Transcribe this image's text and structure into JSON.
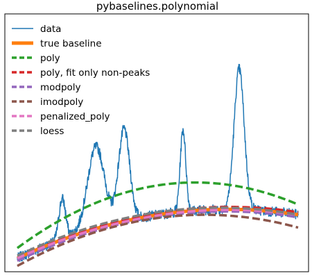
{
  "chart_data": {
    "type": "line",
    "title": "pybaselines.polynomial",
    "xlabel": "",
    "ylabel": "",
    "x_range": [
      0,
      1
    ],
    "y_range": [
      0,
      1
    ],
    "grid": false,
    "axes_ticks": false,
    "legend_position": "top-left",
    "series": [
      {
        "name": "data",
        "color": "#1f77b4",
        "style": "solid-thin",
        "peaks": [
          {
            "center": 0.16,
            "height": 0.16,
            "width": 0.012
          },
          {
            "center": 0.28,
            "height": 0.32,
            "width": 0.03
          },
          {
            "center": 0.38,
            "height": 0.36,
            "width": 0.02
          },
          {
            "center": 0.59,
            "height": 0.32,
            "width": 0.01
          },
          {
            "center": 0.79,
            "height": 0.55,
            "width": 0.018
          }
        ],
        "noise": 0.02
      },
      {
        "name": "true baseline",
        "color": "#ff7f0e",
        "style": "solid-thick",
        "curve": [
          0.05,
          0.51,
          -0.34
        ]
      },
      {
        "name": "poly",
        "color": "#2ca02c",
        "style": "dashed",
        "curve": [
          0.09,
          0.81,
          -0.64
        ]
      },
      {
        "name": "poly, fit only non-peaks",
        "color": "#d62728",
        "style": "dashed",
        "curve": [
          0.05,
          0.53,
          -0.35
        ]
      },
      {
        "name": "modpoly",
        "color": "#9467bd",
        "style": "dashed",
        "curve": [
          0.04,
          0.52,
          -0.35
        ]
      },
      {
        "name": "imodpoly",
        "color": "#8c564b",
        "style": "dashed",
        "curve": [
          0.02,
          0.6,
          -0.45
        ]
      },
      {
        "name": "penalized_poly",
        "color": "#e377c2",
        "style": "dashed",
        "curve": [
          0.05,
          0.5,
          -0.33
        ]
      },
      {
        "name": "loess",
        "color": "#7f7f7f",
        "style": "dashed",
        "curve": [
          0.06,
          0.52,
          -0.36
        ]
      }
    ]
  }
}
